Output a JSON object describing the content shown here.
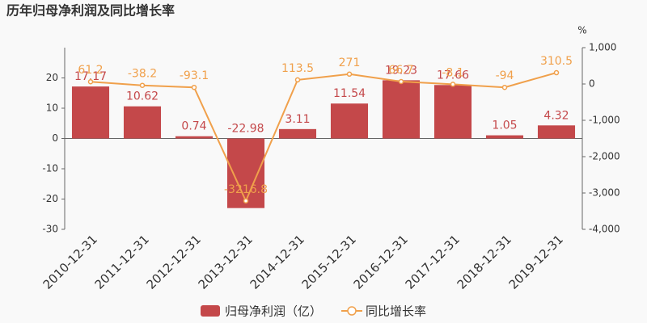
{
  "chart_data": {
    "type": "combo",
    "title": "历年归母净利润及同比增长率",
    "categories": [
      "2010-12-31",
      "2011-12-31",
      "2012-12-31",
      "2013-12-31",
      "2014-12-31",
      "2015-12-31",
      "2016-12-31",
      "2017-12-31",
      "2018-12-31",
      "2019-12-31"
    ],
    "series": [
      {
        "name": "归母净利润（亿）",
        "type": "bar",
        "color": "#c4484a",
        "values": [
          17.17,
          10.62,
          0.74,
          -22.98,
          3.11,
          11.54,
          19.23,
          17.66,
          1.05,
          4.32
        ]
      },
      {
        "name": "同比增长率",
        "type": "line",
        "axis": "y2",
        "color": "#f0a04b",
        "values": [
          61.2,
          -38.2,
          -93.1,
          -3216.8,
          113.5,
          271,
          66.7,
          -8.1,
          -94,
          310.5
        ]
      }
    ],
    "ylim": [
      -30,
      30
    ],
    "yticks": [
      -30,
      -20,
      -10,
      0,
      10,
      20
    ],
    "y2label": "%",
    "y2lim": [
      -4000,
      1000
    ],
    "y2ticks": [
      {
        "value": -4000,
        "label": "-4,000"
      },
      {
        "value": -3000,
        "label": "-3,000"
      },
      {
        "value": -2000,
        "label": "-2,000"
      },
      {
        "value": -1000,
        "label": "-1,000"
      },
      0,
      {
        "value": 1000,
        "label": "1,000"
      }
    ]
  }
}
